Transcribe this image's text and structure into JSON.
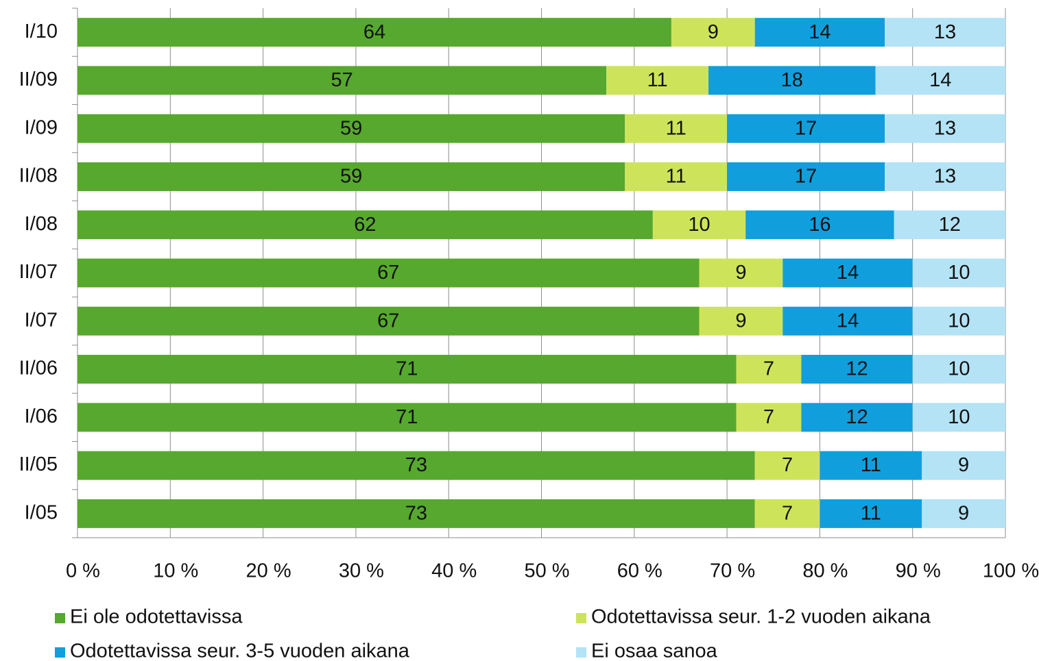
{
  "chart_data": {
    "type": "stacked-bar-horizontal",
    "categories": [
      "I/10",
      "II/09",
      "I/09",
      "II/08",
      "I/08",
      "II/07",
      "I/07",
      "II/06",
      "I/06",
      "II/05",
      "I/05"
    ],
    "series": [
      {
        "name": "Ei ole odotettavissa",
        "color": "#56a82e",
        "values": [
          64,
          57,
          59,
          59,
          62,
          67,
          67,
          71,
          71,
          73,
          73
        ]
      },
      {
        "name": "Odotettavissa seur. 1-2 vuoden aikana",
        "color": "#cde45a",
        "values": [
          9,
          11,
          11,
          11,
          10,
          9,
          9,
          7,
          7,
          7,
          7
        ]
      },
      {
        "name": "Odotettavissa seur. 3-5 vuoden aikana",
        "color": "#109fdc",
        "values": [
          14,
          18,
          17,
          17,
          16,
          14,
          14,
          12,
          12,
          11,
          11
        ]
      },
      {
        "name": "Ei osaa sanoa",
        "color": "#b3e3f5",
        "values": [
          13,
          14,
          13,
          13,
          12,
          10,
          10,
          10,
          10,
          9,
          9
        ]
      }
    ],
    "xlim": [
      0,
      100
    ],
    "xticks": [
      {
        "value": 0,
        "label": "0 %"
      },
      {
        "value": 10,
        "label": "10 %"
      },
      {
        "value": 20,
        "label": "20 %"
      },
      {
        "value": 30,
        "label": "30 %"
      },
      {
        "value": 40,
        "label": "40 %"
      },
      {
        "value": 50,
        "label": "50 %"
      },
      {
        "value": 60,
        "label": "60 %"
      },
      {
        "value": 70,
        "label": "70 %"
      },
      {
        "value": 80,
        "label": "80 %"
      },
      {
        "value": 90,
        "label": "90 %"
      },
      {
        "value": 100,
        "label": "100 %"
      }
    ],
    "grid": true
  }
}
